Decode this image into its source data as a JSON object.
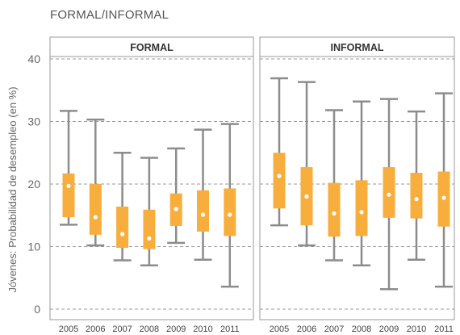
{
  "figure_title": "FORMAL/INFORMAL",
  "colors": {
    "box": "#f8ae3c",
    "whisker": "#8c8c8c",
    "grid": "#999999",
    "frame": "#999999",
    "median": "#ffffff"
  },
  "chart_data": {
    "type": "boxplot",
    "ylabel": "Jóvenes: Probabilidad de desempleo (en %)",
    "ylim": [
      0,
      40
    ],
    "yticks": [
      0,
      10,
      20,
      30,
      40
    ],
    "grid": true,
    "categories": [
      "2005",
      "2006",
      "2007",
      "2008",
      "2009",
      "2010",
      "2011"
    ],
    "panels": [
      {
        "title": "FORMAL",
        "boxes": [
          {
            "year": "2005",
            "min": 13.5,
            "q1": 14.7,
            "mid": 19.7,
            "q3": 21.7,
            "max": 31.7
          },
          {
            "year": "2006",
            "min": 10.2,
            "q1": 11.9,
            "mid": 14.7,
            "q3": 20.0,
            "max": 30.3
          },
          {
            "year": "2007",
            "min": 7.8,
            "q1": 9.8,
            "mid": 12.0,
            "q3": 16.4,
            "max": 25.0
          },
          {
            "year": "2008",
            "min": 7.0,
            "q1": 9.6,
            "mid": 11.3,
            "q3": 15.9,
            "max": 24.2
          },
          {
            "year": "2009",
            "min": 10.6,
            "q1": 13.3,
            "mid": 16.0,
            "q3": 18.5,
            "max": 25.7
          },
          {
            "year": "2010",
            "min": 7.9,
            "q1": 12.4,
            "mid": 15.1,
            "q3": 19.0,
            "max": 28.7
          },
          {
            "year": "2011",
            "min": 3.6,
            "q1": 11.7,
            "mid": 15.1,
            "q3": 19.3,
            "max": 29.6
          }
        ]
      },
      {
        "title": "INFORMAL",
        "boxes": [
          {
            "year": "2005",
            "min": 13.4,
            "q1": 16.1,
            "mid": 21.3,
            "q3": 25.0,
            "max": 36.9
          },
          {
            "year": "2006",
            "min": 10.2,
            "q1": 13.4,
            "mid": 18.0,
            "q3": 22.7,
            "max": 36.3
          },
          {
            "year": "2007",
            "min": 7.8,
            "q1": 11.6,
            "mid": 15.3,
            "q3": 20.2,
            "max": 31.8
          },
          {
            "year": "2008",
            "min": 7.0,
            "q1": 11.7,
            "mid": 15.5,
            "q3": 20.6,
            "max": 33.2
          },
          {
            "year": "2009",
            "min": 3.2,
            "q1": 14.6,
            "mid": 18.3,
            "q3": 22.7,
            "max": 33.6
          },
          {
            "year": "2010",
            "min": 7.9,
            "q1": 14.5,
            "mid": 17.6,
            "q3": 21.8,
            "max": 31.6
          },
          {
            "year": "2011",
            "min": 3.6,
            "q1": 13.2,
            "mid": 17.8,
            "q3": 22.0,
            "max": 34.5
          }
        ]
      }
    ]
  }
}
